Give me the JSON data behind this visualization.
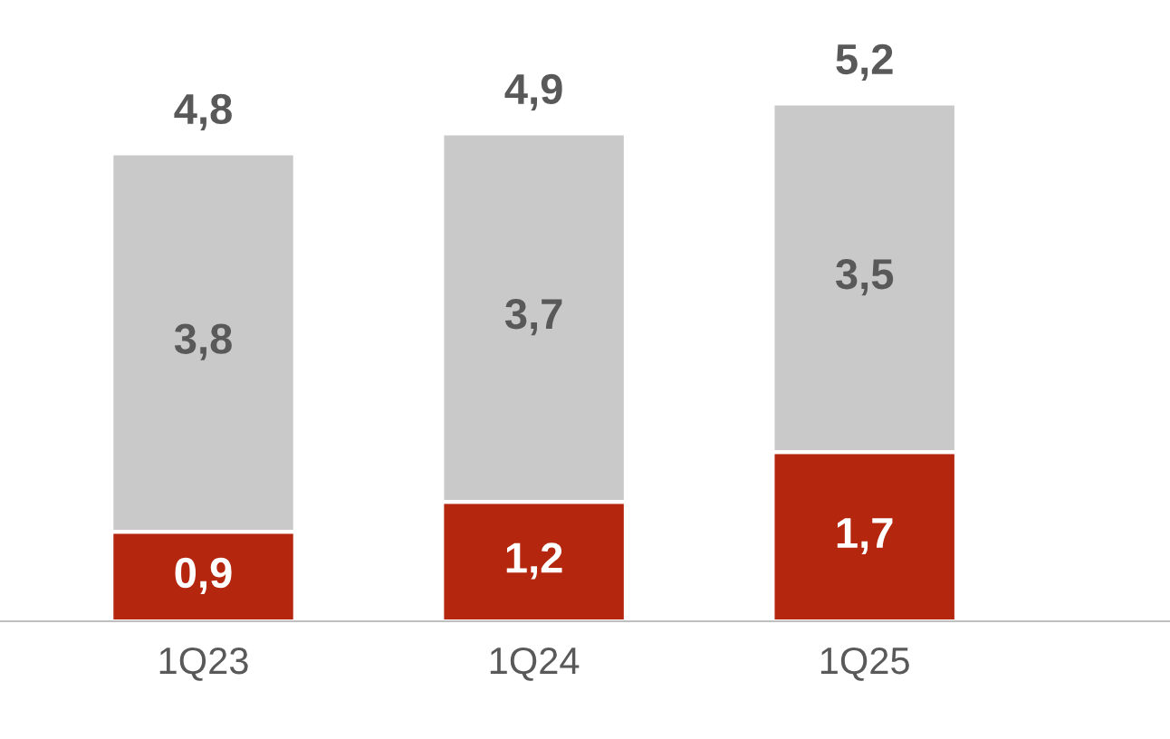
{
  "chart_data": {
    "type": "bar",
    "stacked": true,
    "categories": [
      "1Q23",
      "1Q24",
      "1Q25"
    ],
    "series": [
      {
        "color": "#b5260f",
        "values": [
          0.9,
          1.2,
          1.7
        ],
        "value_labels": [
          "0,9",
          "1,2",
          "1,7"
        ]
      },
      {
        "color": "#c9c9c9",
        "values": [
          3.8,
          3.7,
          3.5
        ],
        "value_labels": [
          "3,8",
          "3,7",
          "3,5"
        ]
      }
    ],
    "totals": [
      "4,8",
      "4,9",
      "5,2"
    ],
    "grid": false
  }
}
